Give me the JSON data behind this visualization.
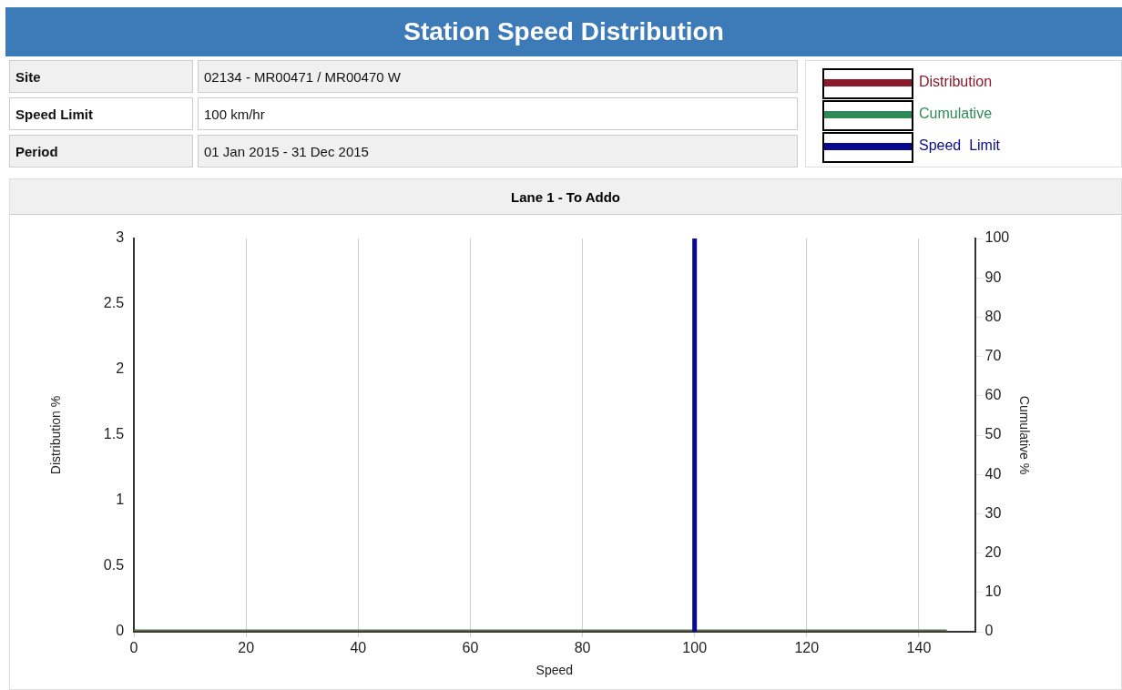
{
  "chart_data": {
    "type": "line",
    "title": "Station Speed Distribution",
    "subtitle": "Lane 1 - To Addo",
    "annotations": [
      "Site",
      "02134 - MR00471 / MR00470 W",
      "Speed Limit",
      "100 km/hr",
      "Period",
      "01 Jan 2015 - 31 Dec 2015"
    ],
    "xlabel": "Speed",
    "ylabel": "Distribution %",
    "y2label": "Cumulative %",
    "x": [
      0,
      145
    ],
    "series": [
      {
        "name": "Distribution",
        "color": "#8b1a2b",
        "values": [
          0,
          0
        ]
      },
      {
        "name": "Cumulative",
        "color": "#2e8b57",
        "values": [
          0,
          0
        ]
      }
    ],
    "ref_lines": [
      {
        "axis": "x",
        "value": 100,
        "label": "Speed  Limit",
        "color": "#0a0a8c"
      }
    ],
    "xlim": [
      0,
      150
    ],
    "xticks": [
      0,
      20,
      40,
      60,
      80,
      100,
      120,
      140
    ],
    "ylim": [
      0,
      3
    ],
    "yticks": [
      0,
      0.5,
      1,
      1.5,
      2,
      2.5,
      3
    ],
    "y2lim": [
      0,
      100
    ],
    "y2ticks": [
      0,
      10,
      20,
      30,
      40,
      50,
      60,
      70,
      80,
      90,
      100
    ],
    "grid": "x",
    "legend": "top right",
    "marker": "none",
    "line_style": "solid"
  }
}
